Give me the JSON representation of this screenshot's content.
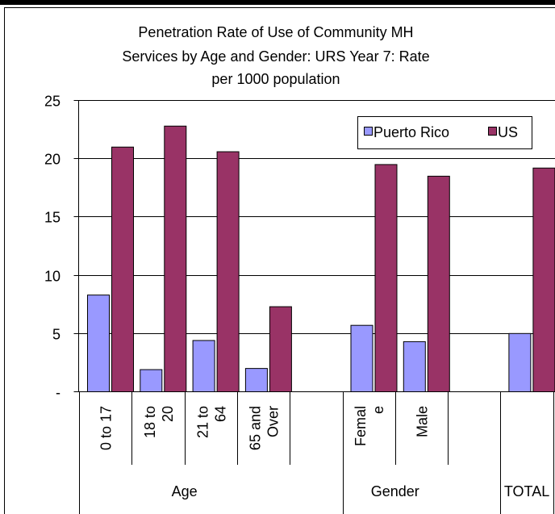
{
  "chart_data": {
    "type": "bar",
    "title": [
      "Penetration Rate of Use of Community MH",
      "Services by Age and Gender: URS Year 7: Rate",
      "per 1000 population"
    ],
    "categories": [
      "0 to 17",
      "18 to 20",
      "21 to 64",
      "65 and Over",
      "",
      "Female",
      "Male",
      "",
      "TOTAL"
    ],
    "category_label_lines": [
      [
        "0 to 17"
      ],
      [
        "18 to",
        "20"
      ],
      [
        "21 to",
        "64"
      ],
      [
        "65 and",
        "Over"
      ],
      [],
      [
        "Femal",
        "e"
      ],
      [
        "Male"
      ],
      [],
      []
    ],
    "groups": [
      {
        "label": "Age",
        "from": 0,
        "to": 3
      },
      {
        "label": "Gender",
        "from": 5,
        "to": 6
      },
      {
        "label": "TOTAL",
        "from": 8,
        "to": 8
      }
    ],
    "series": [
      {
        "name": "Puerto Rico",
        "color": "#9999ff",
        "values": [
          8.3,
          1.9,
          4.4,
          2.0,
          null,
          5.7,
          4.3,
          null,
          5.0
        ]
      },
      {
        "name": "US",
        "color": "#993366",
        "values": [
          21.0,
          22.8,
          20.6,
          7.3,
          null,
          19.5,
          18.5,
          null,
          19.2
        ]
      }
    ],
    "ylim": [
      0,
      25
    ],
    "yticks": [
      0,
      5,
      10,
      15,
      20,
      25
    ],
    "ytick_labels": [
      "-",
      "5",
      "10",
      "15",
      "20",
      "25"
    ],
    "legend": "top-right",
    "grid": false
  }
}
